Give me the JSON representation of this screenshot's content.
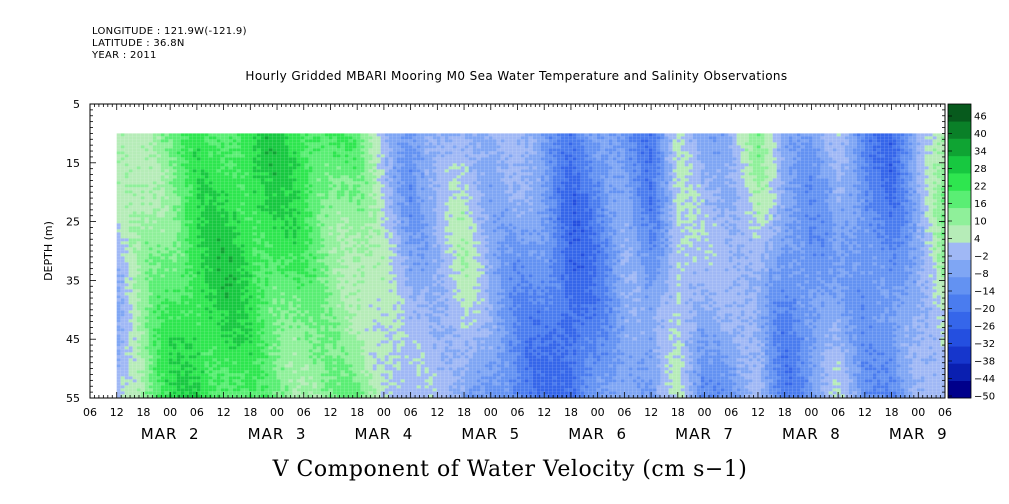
{
  "header": {
    "longitude": "LONGITUDE : 121.9W(-121.9)",
    "latitude": "LATITUDE : 36.8N",
    "year": "YEAR : 2011"
  },
  "chart_data": {
    "type": "heatmap",
    "title": "Hourly Gridded MBARI Mooring M0 Sea Water Temperature and Salinity Observations",
    "xlabel": "V Component of Water Velocity (cm s−1)",
    "ylabel": "DEPTH (m)",
    "y_axis": {
      "range": [
        5,
        55
      ],
      "inverted": true,
      "tick_labels": [
        "5",
        "15",
        "25",
        "35",
        "45",
        "55"
      ],
      "data_top": 10
    },
    "x_axis": {
      "start": "2011-03-01T06:00",
      "end": "2011-03-09T06:00",
      "data_start": "2011-03-01T12:00",
      "data_end": "2011-03-09T06:00",
      "hour_tick_labels": [
        "06",
        "12",
        "18",
        "00",
        "06",
        "12",
        "18",
        "00",
        "06",
        "12",
        "18",
        "00",
        "06",
        "12",
        "18",
        "00",
        "06",
        "12",
        "18",
        "00",
        "06",
        "12",
        "18",
        "00",
        "06",
        "12",
        "18",
        "00",
        "06",
        "12",
        "18",
        "00",
        "06"
      ],
      "date_labels": [
        {
          "text": "MAR  2",
          "date": "2011-03-02"
        },
        {
          "text": "MAR  3",
          "date": "2011-03-03"
        },
        {
          "text": "MAR  4",
          "date": "2011-03-04"
        },
        {
          "text": "MAR  5",
          "date": "2011-03-05"
        },
        {
          "text": "MAR  6",
          "date": "2011-03-06"
        },
        {
          "text": "MAR  7",
          "date": "2011-03-07"
        },
        {
          "text": "MAR  8",
          "date": "2011-03-08"
        },
        {
          "text": "MAR  9",
          "date": "2011-03-09"
        }
      ]
    },
    "colorbar": {
      "levels": [
        -50,
        -44,
        -38,
        -32,
        -26,
        -20,
        -14,
        -8,
        -2,
        4,
        10,
        16,
        22,
        28,
        34,
        40,
        46
      ],
      "tick_labels": [
        "46",
        "40",
        "34",
        "28",
        "22",
        "16",
        "10",
        "4",
        "−2",
        "−8",
        "−14",
        "−20",
        "−26",
        "−32",
        "−38",
        "−44",
        "−50"
      ],
      "colors_low_to_high": [
        "#00008b",
        "#0a1fb0",
        "#1636cc",
        "#244fe0",
        "#3566ea",
        "#4a7cef",
        "#6392f2",
        "#7fa6f4",
        "#a0b8f5",
        "#b6ecb8",
        "#8ff09a",
        "#5aee74",
        "#2ee64f",
        "#17c840",
        "#0fa433",
        "#0a8028",
        "#075a1d"
      ],
      "grid_colors": [
        "#b4bdf7",
        "#aab7f5",
        "#c3eec8",
        "#8ff29f",
        "#5df07a",
        "#2fe956",
        "#7fa6f4",
        "#4f82ef"
      ]
    },
    "time_profile": [
      {
        "t": "2011-03-01T12:00",
        "v": 6
      },
      {
        "t": "2011-03-01T20:00",
        "v": 18
      },
      {
        "t": "2011-03-02T06:00",
        "v": 26
      },
      {
        "t": "2011-03-02T18:00",
        "v": 24
      },
      {
        "t": "2011-03-03T06:00",
        "v": 22
      },
      {
        "t": "2011-03-03T18:00",
        "v": 18
      },
      {
        "t": "2011-03-04T00:00",
        "v": 8
      },
      {
        "t": "2011-03-04T06:00",
        "v": -4
      },
      {
        "t": "2011-03-04T12:00",
        "v": -2
      },
      {
        "t": "2011-03-04T18:00",
        "v": 2
      },
      {
        "t": "2011-03-05T00:00",
        "v": -6
      },
      {
        "t": "2011-03-05T12:00",
        "v": -10
      },
      {
        "t": "2011-03-05T18:00",
        "v": -18
      },
      {
        "t": "2011-03-06T00:00",
        "v": -10
      },
      {
        "t": "2011-03-06T06:00",
        "v": -2
      },
      {
        "t": "2011-03-06T12:00",
        "v": -12
      },
      {
        "t": "2011-03-06T18:00",
        "v": 4
      },
      {
        "t": "2011-03-07T00:00",
        "v": -6
      },
      {
        "t": "2011-03-07T06:00",
        "v": -4
      },
      {
        "t": "2011-03-07T12:00",
        "v": 6
      },
      {
        "t": "2011-03-07T18:00",
        "v": -8
      },
      {
        "t": "2011-03-08T00:00",
        "v": -6
      },
      {
        "t": "2011-03-08T06:00",
        "v": 2
      },
      {
        "t": "2011-03-08T12:00",
        "v": -10
      },
      {
        "t": "2011-03-08T18:00",
        "v": -16
      },
      {
        "t": "2011-03-09T00:00",
        "v": -4
      },
      {
        "t": "2011-03-09T06:00",
        "v": 8
      }
    ]
  }
}
